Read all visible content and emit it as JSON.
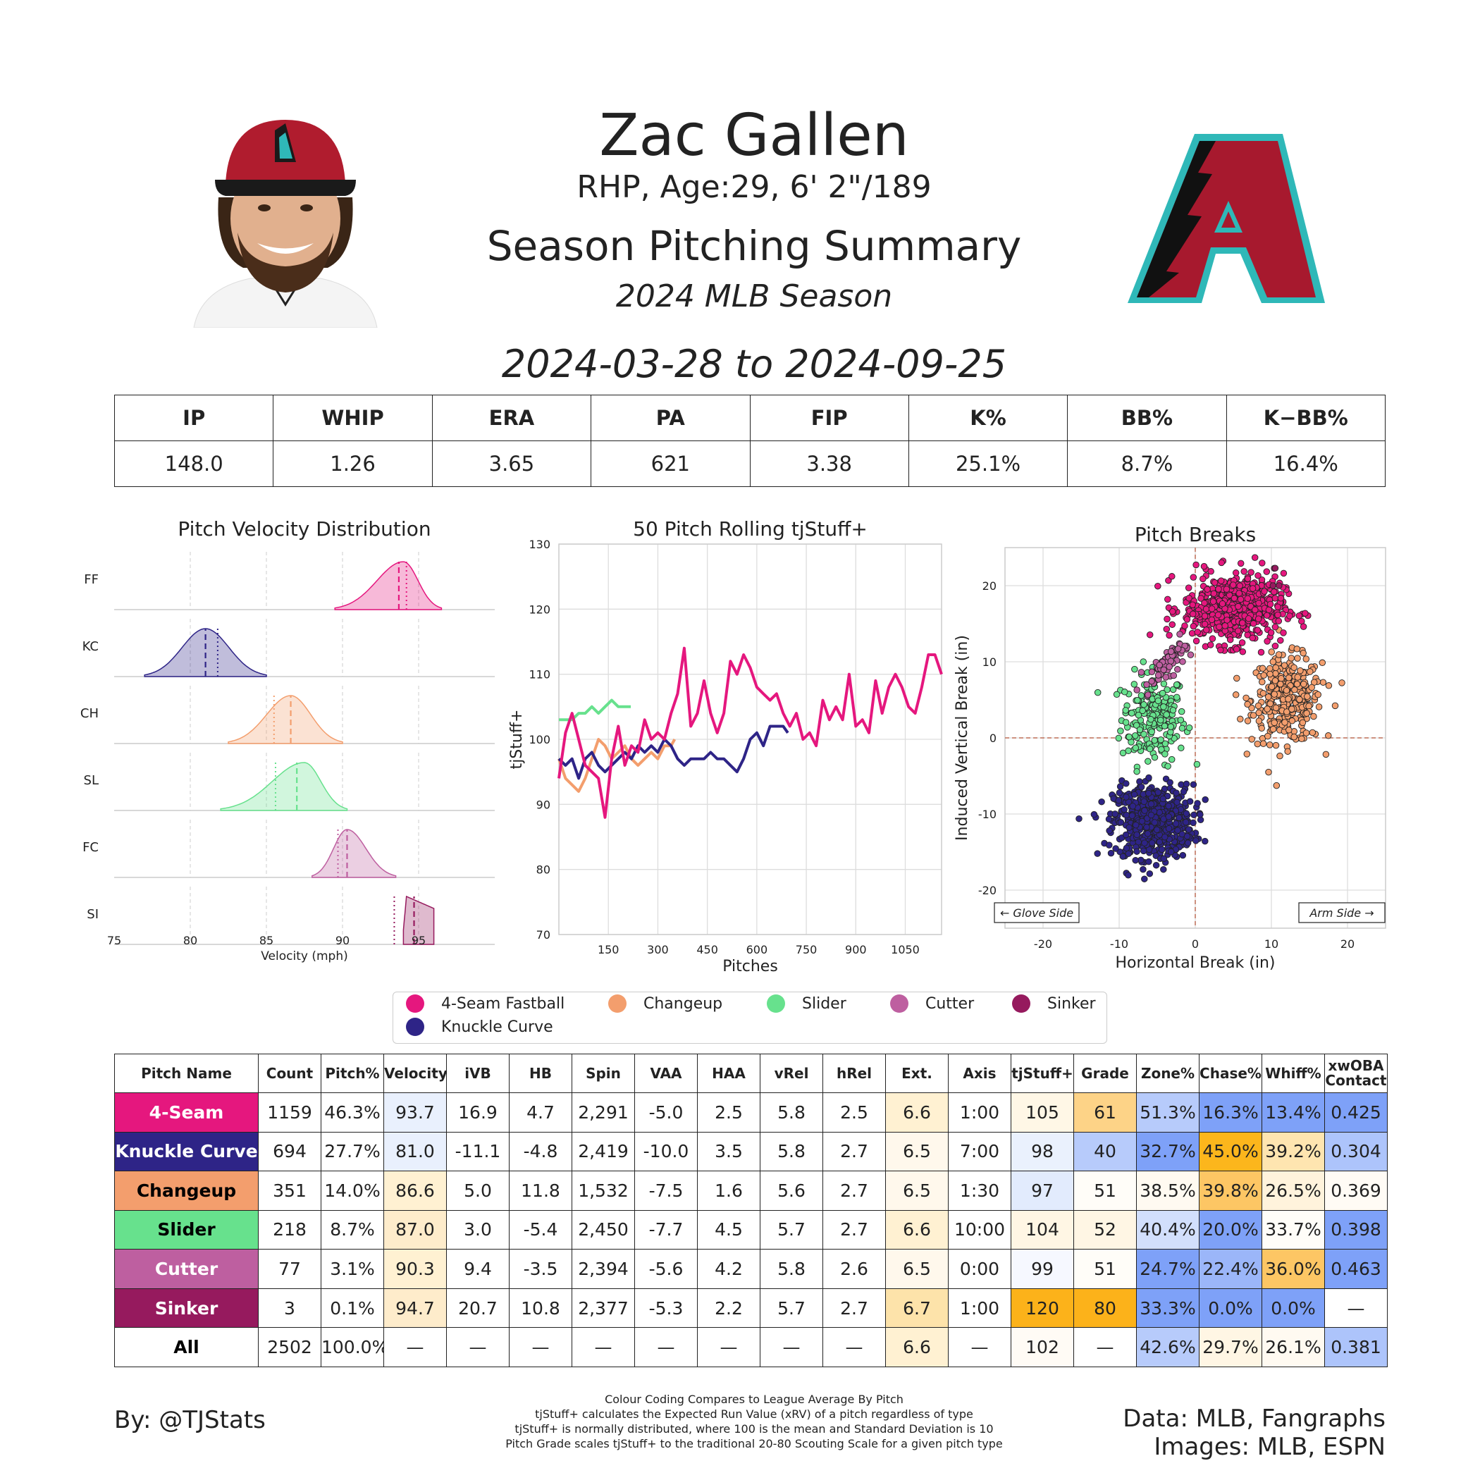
{
  "header": {
    "name": "Zac Gallen",
    "bio": "RHP, Age:29, 6' 2\"/189",
    "title": "Season Pitching Summary",
    "season": "2024 MLB Season",
    "dates": "2024-03-28 to 2024-09-25"
  },
  "stats": {
    "headers": [
      "IP",
      "WHIP",
      "ERA",
      "PA",
      "FIP",
      "K%",
      "BB%",
      "K−BB%"
    ],
    "values": [
      "148.0",
      "1.26",
      "3.65",
      "621",
      "3.38",
      "25.1%",
      "8.7%",
      "16.4%"
    ]
  },
  "colors": {
    "four_seam": "#e5177e",
    "knuckle_curve": "#2e2487",
    "changeup": "#f39e6d",
    "slider": "#67e18d",
    "cutter": "#be5fa0",
    "sinker": "#961a5e"
  },
  "chart_data": [
    {
      "type": "area",
      "title": "Pitch Velocity Distribution",
      "xlabel": "Velocity (mph)",
      "xlim": [
        75,
        100
      ],
      "xticks": [
        "75",
        "80",
        "85",
        "90",
        "95"
      ],
      "series": [
        {
          "name": "FF",
          "color": "#e5177e",
          "min": 89.5,
          "max": 96.5,
          "mode": 94.0,
          "mean": 93.7,
          "league": 94.2
        },
        {
          "name": "KC",
          "color": "#2e2487",
          "min": 77.0,
          "max": 85.0,
          "mode": 81.0,
          "mean": 81.0,
          "league": 81.8
        },
        {
          "name": "CH",
          "color": "#f39e6d",
          "min": 82.5,
          "max": 90.0,
          "mode": 86.6,
          "mean": 86.6,
          "league": 85.5
        },
        {
          "name": "SL",
          "color": "#67e18d",
          "min": 82.0,
          "max": 90.3,
          "mode": 87.5,
          "mean": 87.0,
          "league": 85.6
        },
        {
          "name": "FC",
          "color": "#be5fa0",
          "min": 88.0,
          "max": 93.5,
          "mode": 90.3,
          "mean": 90.3,
          "league": 89.7
        },
        {
          "name": "SI",
          "color": "#961a5e",
          "min": 94.0,
          "max": 96.0,
          "mode": 94.2,
          "mean": 94.7,
          "league": 93.4
        }
      ]
    },
    {
      "type": "line",
      "title": "50 Pitch Rolling tjStuff+",
      "xlabel": "Pitches",
      "ylabel": "tjStuff+",
      "xlim": [
        0,
        1160
      ],
      "ylim": [
        70,
        130
      ],
      "xticks": [
        "150",
        "300",
        "450",
        "600",
        "750",
        "900",
        "1050"
      ],
      "yticks": [
        "70",
        "80",
        "90",
        "100",
        "110",
        "120",
        "130"
      ],
      "series": [
        {
          "name": "4-Seam Fastball",
          "color": "#e5177e",
          "x": [
            0,
            20,
            40,
            60,
            80,
            100,
            120,
            140,
            160,
            180,
            200,
            220,
            240,
            260,
            280,
            300,
            320,
            340,
            360,
            380,
            400,
            420,
            440,
            460,
            480,
            500,
            520,
            540,
            560,
            580,
            600,
            620,
            640,
            660,
            680,
            700,
            720,
            740,
            760,
            780,
            800,
            820,
            840,
            860,
            880,
            900,
            920,
            940,
            960,
            980,
            1000,
            1020,
            1040,
            1060,
            1080,
            1100,
            1120,
            1140,
            1160
          ],
          "y": [
            94,
            101,
            104,
            100,
            96,
            95,
            94,
            88,
            97,
            102,
            96,
            99,
            98,
            103,
            100,
            101,
            100,
            104,
            107,
            114,
            102,
            104,
            109,
            104,
            101,
            104,
            112,
            110,
            113,
            111,
            108,
            107,
            106,
            107,
            104,
            102,
            104,
            100,
            101,
            99,
            106,
            103,
            105,
            103,
            110,
            102,
            103,
            101,
            109,
            104,
            108,
            110,
            108,
            105,
            104,
            108,
            113,
            113,
            110
          ]
        },
        {
          "name": "Knuckle Curve",
          "color": "#2e2487",
          "x": [
            0,
            20,
            40,
            60,
            80,
            100,
            120,
            140,
            160,
            180,
            200,
            220,
            240,
            260,
            280,
            300,
            320,
            340,
            360,
            380,
            400,
            420,
            440,
            460,
            480,
            500,
            520,
            540,
            560,
            580,
            600,
            620,
            640,
            660,
            680,
            694
          ],
          "y": [
            97,
            96,
            97,
            94,
            97,
            98,
            96,
            95,
            96,
            97,
            98,
            97,
            99,
            98,
            99,
            98,
            100,
            99,
            97,
            96,
            97,
            97,
            97,
            98,
            97,
            97,
            96,
            95,
            97,
            100,
            101,
            99,
            102,
            102,
            102,
            101
          ]
        },
        {
          "name": "Changeup",
          "color": "#f39e6d",
          "x": [
            0,
            20,
            40,
            60,
            80,
            100,
            120,
            140,
            160,
            180,
            200,
            220,
            240,
            260,
            280,
            300,
            320,
            340,
            351
          ],
          "y": [
            97,
            94,
            93,
            92,
            94,
            97,
            100,
            99,
            97,
            98,
            99,
            97,
            96,
            97,
            98,
            97,
            99,
            99,
            100
          ]
        },
        {
          "name": "Slider",
          "color": "#67e18d",
          "x": [
            0,
            20,
            40,
            60,
            80,
            100,
            120,
            140,
            160,
            180,
            200,
            218
          ],
          "y": [
            103,
            103,
            103,
            104,
            104,
            105,
            104,
            105,
            106,
            105,
            105,
            105
          ]
        }
      ]
    },
    {
      "type": "scatter",
      "title": "Pitch Breaks",
      "xlabel": "Horizontal Break (in)",
      "ylabel": "Induced Vertical Break (in)",
      "xlim": [
        -25,
        25
      ],
      "ylim": [
        -25,
        25
      ],
      "xticks": [
        "-20",
        "-10",
        "0",
        "10",
        "20"
      ],
      "yticks": [
        "-20",
        "-10",
        "0",
        "10",
        "20"
      ],
      "annotations": [
        "← Glove Side",
        "Arm Side →"
      ],
      "series": [
        {
          "name": "4-Seam Fastball",
          "color": "#e5177e",
          "cx": 5.0,
          "cy": 17.0,
          "sx": 3.3,
          "sy": 2.3,
          "n": 560
        },
        {
          "name": "Knuckle Curve",
          "color": "#2e2487",
          "cx": -5.5,
          "cy": -11.0,
          "sx": 2.6,
          "sy": 2.4,
          "n": 600
        },
        {
          "name": "Changeup",
          "color": "#f39e6d",
          "cx": 12.0,
          "cy": 5.0,
          "sx": 2.3,
          "sy": 2.8,
          "n": 330
        },
        {
          "name": "Slider",
          "color": "#67e18d",
          "cx": -5.5,
          "cy": 2.5,
          "sx": 2.1,
          "sy": 3.0,
          "n": 210
        },
        {
          "name": "Cutter",
          "color": "#be5fa0",
          "cx": -3.5,
          "cy": 10.0,
          "sx": 1.5,
          "sy": 1.7,
          "n": 70
        },
        {
          "name": "Sinker",
          "color": "#961a5e",
          "x": [
            10.5,
            11.0,
            10.2
          ],
          "y": [
            22.3,
            20.0,
            20.0
          ]
        }
      ]
    },
    {
      "type": "table",
      "columns": [
        "Pitch Name",
        "Count",
        "Pitch%",
        "Velocity",
        "iVB",
        "HB",
        "Spin",
        "VAA",
        "HAA",
        "vRel",
        "hRel",
        "Ext.",
        "Axis",
        "tjStuff+",
        "Grade",
        "Zone%",
        "Chase%",
        "Whiff%",
        "xwOBA Contact"
      ],
      "rows": [
        {
          "name": "4-Seam",
          "color": "#e5177e",
          "text": "#ffffff",
          "cells": [
            "1159",
            "46.3%",
            "93.7",
            "16.9",
            "4.7",
            "2,291",
            "-5.0",
            "2.5",
            "5.8",
            "2.5",
            "6.6",
            "1:00",
            "105",
            "61",
            "51.3%",
            "16.3%",
            "13.4%",
            "0.425"
          ]
        },
        {
          "name": "Knuckle Curve",
          "color": "#2e2487",
          "text": "#ffffff",
          "cells": [
            "694",
            "27.7%",
            "81.0",
            "-11.1",
            "-4.8",
            "2,419",
            "-10.0",
            "3.5",
            "5.8",
            "2.7",
            "6.5",
            "7:00",
            "98",
            "40",
            "32.7%",
            "45.0%",
            "39.2%",
            "0.304"
          ]
        },
        {
          "name": "Changeup",
          "color": "#f39e6d",
          "text": "#000000",
          "cells": [
            "351",
            "14.0%",
            "86.6",
            "5.0",
            "11.8",
            "1,532",
            "-7.5",
            "1.6",
            "5.6",
            "2.7",
            "6.5",
            "1:30",
            "97",
            "51",
            "38.5%",
            "39.8%",
            "26.5%",
            "0.369"
          ]
        },
        {
          "name": "Slider",
          "color": "#67e18d",
          "text": "#000000",
          "cells": [
            "218",
            "8.7%",
            "87.0",
            "3.0",
            "-5.4",
            "2,450",
            "-7.7",
            "4.5",
            "5.7",
            "2.7",
            "6.6",
            "10:00",
            "104",
            "52",
            "40.4%",
            "20.0%",
            "33.7%",
            "0.398"
          ]
        },
        {
          "name": "Cutter",
          "color": "#be5fa0",
          "text": "#ffffff",
          "cells": [
            "77",
            "3.1%",
            "90.3",
            "9.4",
            "-3.5",
            "2,394",
            "-5.6",
            "4.2",
            "5.8",
            "2.6",
            "6.5",
            "0:00",
            "99",
            "51",
            "24.7%",
            "22.4%",
            "36.0%",
            "0.463"
          ]
        },
        {
          "name": "Sinker",
          "color": "#961a5e",
          "text": "#ffffff",
          "cells": [
            "3",
            "0.1%",
            "94.7",
            "20.7",
            "10.8",
            "2,377",
            "-5.3",
            "2.2",
            "5.7",
            "2.7",
            "6.7",
            "1:00",
            "120",
            "80",
            "33.3%",
            "0.0%",
            "0.0%",
            "—"
          ]
        },
        {
          "name": "All",
          "color": "#ffffff",
          "text": "#000000",
          "cells": [
            "2502",
            "100.0%",
            "—",
            "—",
            "—",
            "—",
            "—",
            "—",
            "—",
            "—",
            "6.6",
            "—",
            "102",
            "—",
            "42.6%",
            "29.7%",
            "26.1%",
            "0.381"
          ]
        }
      ],
      "cell_colors": [
        [
          "",
          "",
          "#e9f0fd",
          "",
          "",
          "",
          "",
          "",
          "",
          "",
          "#fff1d2",
          "",
          "#fff7e6",
          "#fdd387",
          "#b7cbfb",
          "#7ea1f8",
          "#7ea1f8",
          "#7ea1f8"
        ],
        [
          "",
          "",
          "#e9f0fd",
          "",
          "",
          "",
          "",
          "",
          "",
          "",
          "#fff8ec",
          "",
          "#eaf1fd",
          "#b7cbfb",
          "#7ea1f8",
          "#fcb61c",
          "#fee5b0",
          "#adc4fb"
        ],
        [
          "",
          "",
          "#fff1d2",
          "",
          "",
          "",
          "",
          "",
          "",
          "",
          "#fff8ec",
          "",
          "#e2ebfd",
          "#fffdf8",
          "#fffaf1",
          "#fdc664",
          "#fff3dc",
          "#fffbf5"
        ],
        [
          "",
          "",
          "#feeccb",
          "",
          "",
          "",
          "",
          "",
          "",
          "",
          "#fff1d2",
          "",
          "#fff6e4",
          "#fff6e4",
          "#d2dffc",
          "#7ea1f8",
          "#fffdf8",
          "#7ea1f8"
        ],
        [
          "",
          "",
          "#fff1d2",
          "",
          "",
          "",
          "",
          "",
          "",
          "",
          "#fff8ec",
          "",
          "#f6f8ff",
          "#fffdf8",
          "#7ea1f8",
          "#9bb6f9",
          "#fdc664",
          "#7ea1f8"
        ],
        [
          "",
          "",
          "#feeccb",
          "",
          "",
          "",
          "",
          "",
          "",
          "",
          "#fde3aa",
          "",
          "#fcb21a",
          "#fcb21a",
          "#7ea1f8",
          "#7ea1f8",
          "#7ea1f8",
          ""
        ],
        [
          "",
          "",
          "",
          "",
          "",
          "",
          "",
          "",
          "",
          "",
          "#fff1d2",
          "",
          "#fffbf5",
          "",
          "#b7cbfb",
          "#fff6e4",
          "#fffaf1",
          "#adc4fb"
        ]
      ]
    }
  ],
  "legend": [
    "4-Seam Fastball",
    "Changeup",
    "Slider",
    "Cutter",
    "Sinker",
    "Knuckle Curve"
  ],
  "footer": {
    "byline": "By: @TJStats",
    "notes": [
      "Colour Coding Compares to League Average By Pitch",
      "tjStuff+ calculates the Expected Run Value (xRV) of a pitch regardless of type",
      "tjStuff+ is normally distributed, where 100 is the mean and Standard Deviation is 10",
      "Pitch Grade scales tjStuff+ to the traditional 20-80 Scouting Scale for a given pitch type"
    ],
    "data_credit": "Data: MLB, Fangraphs",
    "image_credit": "Images: MLB, ESPN"
  }
}
